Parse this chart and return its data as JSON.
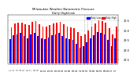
{
  "title": "Milwaukee Weather Barometric Pressure",
  "subtitle": "Daily High/Low",
  "legend_high": "Daily High",
  "legend_low": "Daily Low",
  "high_color": "#ff0000",
  "low_color": "#0000ff",
  "background_color": "#ffffff",
  "ylim": [
    28.3,
    30.8
  ],
  "bar_width": 0.4,
  "num_bars": 31,
  "high_values": [
    30.15,
    30.35,
    30.4,
    30.38,
    30.32,
    30.28,
    30.42,
    30.45,
    30.3,
    30.2,
    30.18,
    30.25,
    30.35,
    30.38,
    30.42,
    30.3,
    30.2,
    30.15,
    30.1,
    29.9,
    29.7,
    29.8,
    30.0,
    30.2,
    30.35,
    30.5,
    30.45,
    30.4,
    30.1,
    29.8,
    30.2
  ],
  "low_values": [
    29.55,
    29.75,
    29.8,
    29.85,
    29.7,
    29.6,
    29.8,
    29.85,
    29.7,
    29.6,
    29.55,
    29.65,
    29.75,
    29.8,
    29.85,
    29.7,
    29.6,
    29.55,
    29.5,
    29.3,
    29.1,
    29.2,
    29.4,
    29.6,
    29.75,
    29.9,
    29.85,
    29.8,
    29.5,
    29.2,
    29.6
  ],
  "dashed_bar_indices": [
    21,
    22,
    23
  ],
  "yticks": [
    28.5,
    29.0,
    29.5,
    30.0,
    30.5
  ],
  "grid_color": "#cccccc"
}
